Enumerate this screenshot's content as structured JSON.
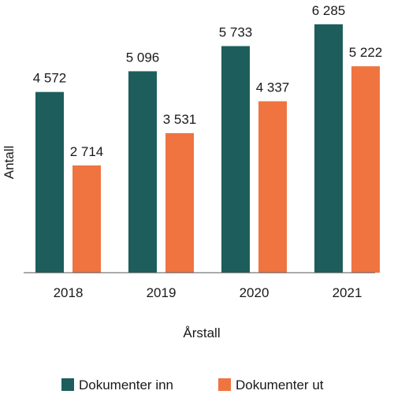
{
  "chart_data": {
    "type": "bar",
    "categories": [
      "2018",
      "2019",
      "2020",
      "2021"
    ],
    "series": [
      {
        "name": "Dokumenter inn",
        "values": [
          4572,
          5096,
          5733,
          6285
        ],
        "labels": [
          "4 572",
          "5 096",
          "5 733",
          "6 285"
        ],
        "color": "#1d5e5c"
      },
      {
        "name": "Dokumenter ut",
        "values": [
          2714,
          3531,
          4337,
          5222
        ],
        "labels": [
          "2 714",
          "3 531",
          "4 337",
          "5 222"
        ],
        "color": "#ef7440"
      }
    ],
    "xlabel": "Årstall",
    "ylabel": "Antall",
    "ylim": [
      0,
      6500
    ],
    "grid": false,
    "legend_position": "bottom"
  }
}
